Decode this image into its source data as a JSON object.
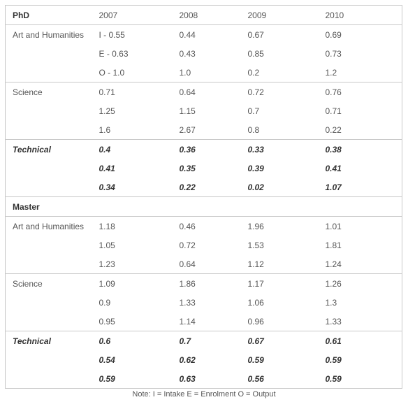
{
  "sections": [
    {
      "header": {
        "label": "PhD",
        "years": [
          "2007",
          "2008",
          "2009",
          "2010"
        ]
      },
      "categories": [
        {
          "label": "Art and Humanities",
          "bold": false,
          "rows": [
            [
              "I  -  0.55",
              "0.44",
              "0.67",
              "0.69"
            ],
            [
              "E  -  0.63",
              "0.43",
              "0.85",
              "0.73"
            ],
            [
              "O  - 1.0",
              "1.0",
              "0.2",
              "1.2"
            ]
          ]
        },
        {
          "label": "Science",
          "bold": false,
          "rows": [
            [
              "0.71",
              "0.64",
              "0.72",
              "0.76"
            ],
            [
              "1.25",
              "1.15",
              "0.7",
              "0.71"
            ],
            [
              "1.6",
              "2.67",
              "0.8",
              "0.22"
            ]
          ]
        },
        {
          "label": "Technical",
          "bold": true,
          "rows": [
            [
              "0.4",
              "0.36",
              "0.33",
              "0.38"
            ],
            [
              "0.41",
              "0.35",
              "0.39",
              "0.41"
            ],
            [
              "0.34",
              "0.22",
              "0.02",
              "1.07"
            ]
          ]
        }
      ]
    },
    {
      "header": {
        "label": "Master",
        "years": [
          "",
          "",
          "",
          ""
        ]
      },
      "categories": [
        {
          "label": "Art and Humanities",
          "bold": false,
          "rows": [
            [
              "1.18",
              "0.46",
              "1.96",
              "1.01"
            ],
            [
              "1.05",
              "0.72",
              "1.53",
              "1.81"
            ],
            [
              "1.23",
              "0.64",
              "1.12",
              "1.24"
            ]
          ]
        },
        {
          "label": "Science",
          "bold": false,
          "rows": [
            [
              "1.09",
              "1.86",
              "1.17",
              "1.26"
            ],
            [
              "0.9",
              "1.33",
              "1.06",
              "1.3"
            ],
            [
              "0.95",
              "1.14",
              "0.96",
              "1.33"
            ]
          ]
        },
        {
          "label": "Technical",
          "bold": true,
          "rows": [
            [
              "0.6",
              "0.7",
              "0.67",
              "0.61"
            ],
            [
              "0.54",
              "0.62",
              "0.59",
              "0.59"
            ],
            [
              "0.59",
              "0.63",
              "0.56",
              "0.59"
            ]
          ]
        }
      ]
    }
  ],
  "note": "Note: I = Intake E = Enrolment    O = Output"
}
